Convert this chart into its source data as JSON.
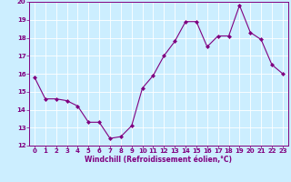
{
  "x": [
    0,
    1,
    2,
    3,
    4,
    5,
    6,
    7,
    8,
    9,
    10,
    11,
    12,
    13,
    14,
    15,
    16,
    17,
    18,
    19,
    20,
    21,
    22,
    23
  ],
  "y": [
    15.8,
    14.6,
    14.6,
    14.5,
    14.2,
    13.3,
    13.3,
    12.4,
    12.5,
    13.1,
    15.2,
    15.9,
    17.0,
    17.8,
    18.9,
    18.9,
    17.5,
    18.1,
    18.1,
    19.8,
    18.3,
    17.9,
    16.5,
    16.0
  ],
  "line_color": "#800080",
  "marker": "D",
  "marker_size": 2,
  "bg_color": "#cceeff",
  "grid_color": "#ffffff",
  "xlabel": "Windchill (Refroidissement éolien,°C)",
  "xlabel_color": "#800080",
  "tick_color": "#800080",
  "ylim": [
    12,
    20
  ],
  "xlim": [
    -0.5,
    23.5
  ],
  "yticks": [
    12,
    13,
    14,
    15,
    16,
    17,
    18,
    19,
    20
  ],
  "xticks": [
    0,
    1,
    2,
    3,
    4,
    5,
    6,
    7,
    8,
    9,
    10,
    11,
    12,
    13,
    14,
    15,
    16,
    17,
    18,
    19,
    20,
    21,
    22,
    23
  ],
  "spine_color": "#800080",
  "tick_fontsize": 5,
  "xlabel_fontsize": 5.5,
  "xlabel_fontweight": "bold"
}
